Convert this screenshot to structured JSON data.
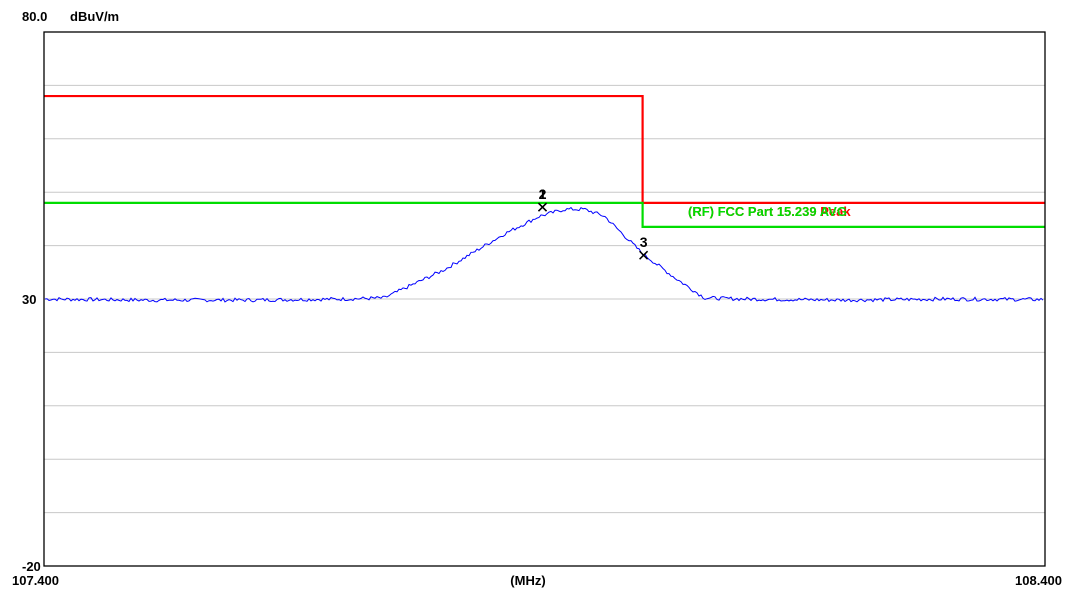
{
  "chart_data": {
    "type": "line",
    "title": "",
    "ytop_label": "80.0",
    "yunit_label": "dBuV/m",
    "xlabel": "(MHz)",
    "xlim": [
      107.4,
      108.4
    ],
    "ylim": [
      -20,
      80
    ],
    "x_tick_labels": [
      {
        "x": 107.4,
        "text": "107.400"
      },
      {
        "x": 108.4,
        "text": "108.400"
      }
    ],
    "y_tick_labels": [
      {
        "y": 30,
        "text": "30"
      },
      {
        "y": -20,
        "text": "-20"
      }
    ],
    "grid": true,
    "grid_y": [
      70,
      60,
      50,
      40,
      30,
      20,
      10,
      0,
      -10
    ],
    "limit_lines": [
      {
        "color": "#ff0000",
        "points": [
          [
            107.4,
            68
          ],
          [
            107.998,
            68
          ],
          [
            107.998,
            48
          ],
          [
            108.4,
            48
          ]
        ],
        "label": "(RF) FCC Part 15.239 Peak"
      },
      {
        "color": "#00dd00",
        "points": [
          [
            107.4,
            48
          ],
          [
            107.998,
            48
          ],
          [
            107.998,
            43.5
          ],
          [
            108.4,
            43.5
          ]
        ],
        "label": "(RF) FCC Part 15.239 AVG"
      }
    ],
    "series": [
      {
        "color": "#0000ff",
        "points": [
          [
            107.4,
            30
          ],
          [
            107.5,
            29.8
          ],
          [
            107.6,
            29.8
          ],
          [
            107.7,
            30
          ],
          [
            107.74,
            30.2
          ],
          [
            107.8,
            35.5
          ],
          [
            107.86,
            42.2
          ],
          [
            107.895,
            45.5
          ],
          [
            107.92,
            46.8
          ],
          [
            107.94,
            46.8
          ],
          [
            107.96,
            45.5
          ],
          [
            107.998,
            38.5
          ],
          [
            108.03,
            34
          ],
          [
            108.06,
            30.2
          ],
          [
            108.1,
            30
          ],
          [
            108.2,
            29.8
          ],
          [
            108.3,
            30
          ],
          [
            108.4,
            29.9
          ]
        ]
      }
    ],
    "markers": [
      {
        "label": "1",
        "x": 107.898,
        "y": 47.2
      },
      {
        "label": "2",
        "x": 107.898,
        "y": 47.2
      },
      {
        "label": "3",
        "x": 107.999,
        "y": 38.2
      }
    ]
  }
}
